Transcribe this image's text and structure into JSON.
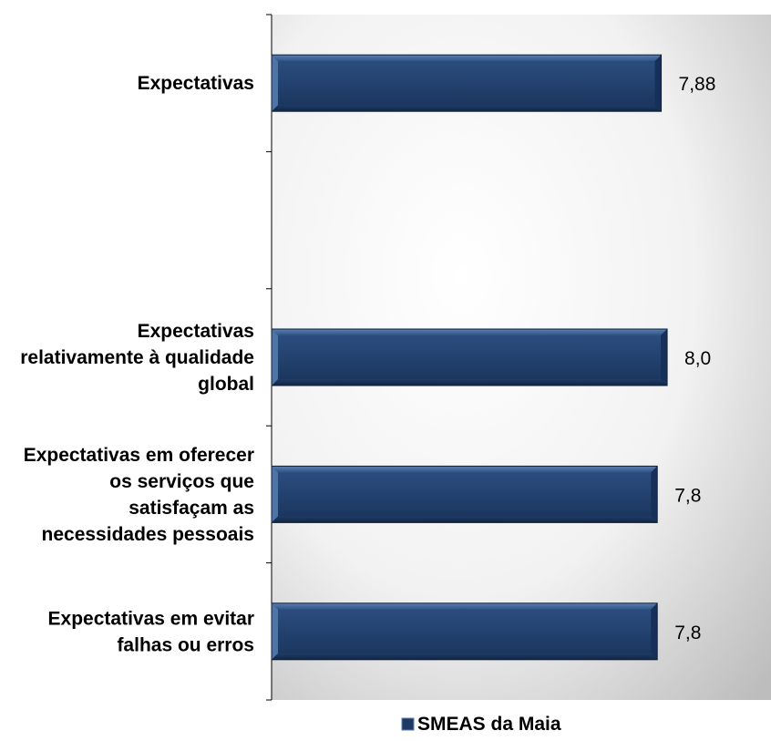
{
  "chart_data": {
    "type": "bar",
    "orientation": "horizontal",
    "categories": [
      [
        "Expectativas"
      ],
      [],
      [
        "Expectativas",
        "relativamente à qualidade",
        "global"
      ],
      [
        "Expectativas em oferecer",
        "os serviços que",
        "satisfaçam as",
        "necessidades pessoais"
      ],
      [
        "Expectativas em evitar",
        "falhas ou erros"
      ]
    ],
    "series": [
      {
        "name": "SMEAS da Maia",
        "values": [
          7.88,
          null,
          8.0,
          7.8,
          7.8
        ],
        "labels": [
          "7,88",
          "",
          "8,0",
          "7,8",
          "7,8"
        ],
        "color": "#1f3864"
      }
    ],
    "xlim": [
      0,
      10.1
    ],
    "grid": false,
    "legend": "bottom-center"
  }
}
